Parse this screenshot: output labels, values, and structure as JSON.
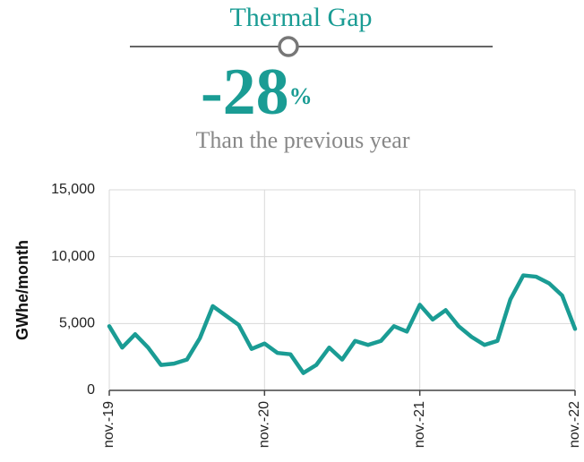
{
  "chart_data": {
    "type": "line",
    "title": "Thermal Gap",
    "kpi_value": -28,
    "kpi_unit": "%",
    "subtitle": "Than the previous year",
    "ylabel": "GWhe/month",
    "categories": [
      "nov.-19",
      null,
      null,
      null,
      null,
      null,
      null,
      null,
      null,
      null,
      null,
      null,
      "nov.-20",
      null,
      null,
      null,
      null,
      null,
      null,
      null,
      null,
      null,
      null,
      null,
      "nov.-21",
      null,
      null,
      null,
      null,
      null,
      null,
      null,
      null,
      null,
      null,
      null,
      "nov.-22"
    ],
    "series": [
      {
        "name": "Thermal Gap",
        "color": "#1a9c94",
        "values": [
          4800,
          3200,
          4200,
          3200,
          1900,
          2000,
          2300,
          3900,
          6300,
          5600,
          4900,
          3100,
          3500,
          2800,
          2700,
          1300,
          1900,
          3200,
          2300,
          3700,
          3400,
          3700,
          4800,
          4400,
          6400,
          5300,
          6000,
          4800,
          4000,
          3400,
          3700,
          6800,
          8600,
          8500,
          8000,
          7100,
          4600
        ]
      }
    ],
    "ylim": [
      0,
      15000
    ],
    "yticks": [
      0,
      {
        "value": 5000,
        "label": "5,000"
      },
      {
        "value": 10000,
        "label": "10,000"
      },
      {
        "value": 15000,
        "label": "15,000"
      }
    ],
    "grid": true
  }
}
